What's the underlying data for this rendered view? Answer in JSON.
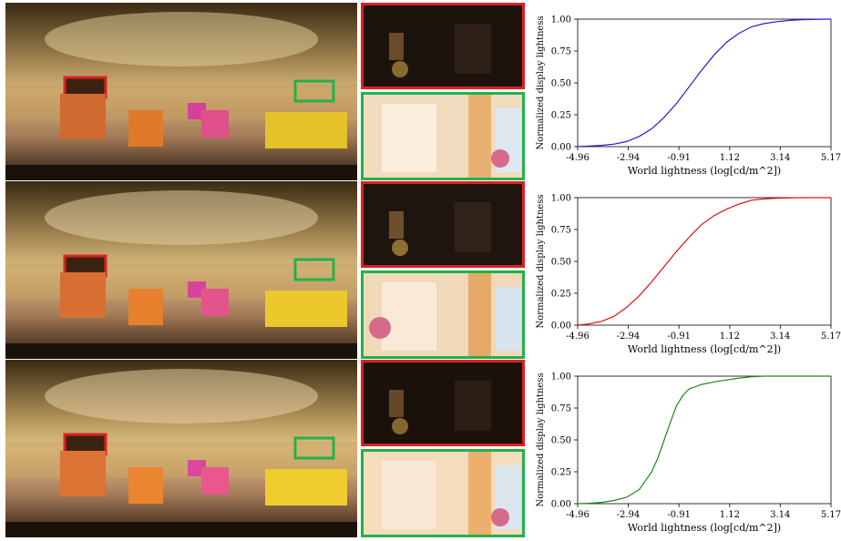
{
  "rows": [
    {
      "crop_colors": {
        "red": "#e02020",
        "green": "#22b14c"
      }
    },
    {
      "crop_colors": {
        "red": "#e02020",
        "green": "#22b14c"
      }
    },
    {
      "crop_colors": {
        "red": "#e02020",
        "green": "#22b14c"
      }
    }
  ],
  "chart_data": [
    {
      "type": "line",
      "xlabel": "World lightness (log[cd/m^2])",
      "ylabel": "Normalized display lightness",
      "xticks": [
        "-4.96",
        "-2.94",
        "-0.91",
        "1.12",
        "3.14",
        "5.17"
      ],
      "yticks": [
        "0.00",
        "0.25",
        "0.50",
        "0.75",
        "1.00"
      ],
      "xlim": [
        -4.96,
        5.17
      ],
      "ylim": [
        0,
        1
      ],
      "color": "#1f1fd6",
      "series": [
        {
          "x": [
            -4.96,
            -4.5,
            -4.0,
            -3.5,
            -3.0,
            -2.5,
            -2.0,
            -1.5,
            -1.0,
            -0.5,
            0.0,
            0.5,
            1.0,
            1.5,
            2.0,
            2.5,
            3.0,
            3.5,
            4.0,
            4.5,
            5.17
          ],
          "y": [
            0.0,
            0.005,
            0.01,
            0.02,
            0.04,
            0.08,
            0.14,
            0.23,
            0.34,
            0.47,
            0.6,
            0.72,
            0.82,
            0.89,
            0.94,
            0.965,
            0.98,
            0.99,
            0.995,
            0.998,
            1.0
          ]
        }
      ]
    },
    {
      "type": "line",
      "xlabel": "World lightness (log[cd/m^2])",
      "ylabel": "Normalized display lightness",
      "xticks": [
        "-4.96",
        "-2.94",
        "-0.91",
        "1.12",
        "3.14",
        "5.17"
      ],
      "yticks": [
        "0.00",
        "0.25",
        "0.50",
        "0.75",
        "1.00"
      ],
      "xlim": [
        -4.96,
        5.17
      ],
      "ylim": [
        0,
        1
      ],
      "color": "#e01010",
      "series": [
        {
          "x": [
            -4.96,
            -4.5,
            -4.0,
            -3.5,
            -3.0,
            -2.5,
            -2.0,
            -1.5,
            -1.0,
            -0.5,
            0.0,
            0.5,
            1.0,
            1.5,
            2.0,
            2.5,
            3.0,
            3.5,
            4.0,
            4.5,
            5.17
          ],
          "y": [
            0.0,
            0.01,
            0.03,
            0.07,
            0.14,
            0.23,
            0.34,
            0.46,
            0.58,
            0.69,
            0.79,
            0.86,
            0.91,
            0.95,
            0.98,
            0.99,
            0.995,
            0.998,
            1.0,
            1.0,
            1.0
          ]
        }
      ]
    },
    {
      "type": "line",
      "xlabel": "World lightness (log[cd/m^2])",
      "ylabel": "Normalized display lightness",
      "xticks": [
        "-4.96",
        "-2.94",
        "-0.91",
        "1.12",
        "3.14",
        "5.17"
      ],
      "yticks": [
        "0.00",
        "0.25",
        "0.50",
        "0.75",
        "1.00"
      ],
      "xlim": [
        -4.96,
        5.17
      ],
      "ylim": [
        0,
        1
      ],
      "color": "#1a8a1a",
      "series": [
        {
          "x": [
            -4.96,
            -4.5,
            -4.0,
            -3.5,
            -3.0,
            -2.5,
            -2.0,
            -1.75,
            -1.5,
            -1.25,
            -1.0,
            -0.75,
            -0.5,
            0.0,
            0.5,
            1.0,
            1.5,
            2.0,
            2.5,
            3.0,
            4.0,
            5.17
          ],
          "y": [
            0.0,
            0.003,
            0.01,
            0.025,
            0.05,
            0.11,
            0.25,
            0.36,
            0.5,
            0.64,
            0.77,
            0.85,
            0.9,
            0.935,
            0.955,
            0.97,
            0.985,
            0.995,
            1.0,
            1.0,
            1.0,
            1.0
          ]
        }
      ]
    }
  ]
}
